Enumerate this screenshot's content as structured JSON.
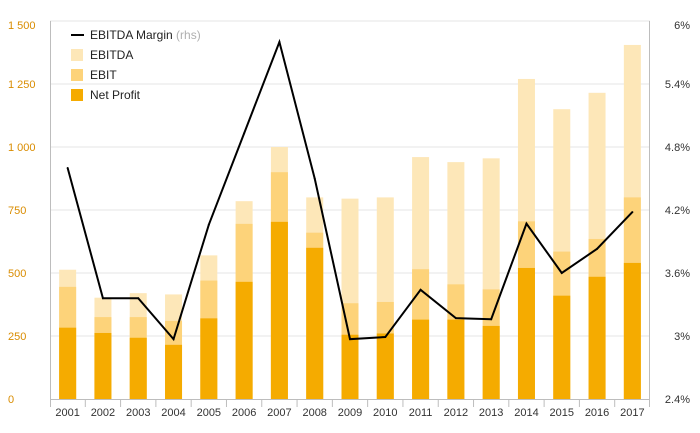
{
  "chart_data": {
    "type": "bar",
    "stacking": "overlay",
    "categories": [
      "2001",
      "2002",
      "2003",
      "2004",
      "2005",
      "2006",
      "2007",
      "2008",
      "2009",
      "2010",
      "2011",
      "2012",
      "2013",
      "2014",
      "2015",
      "2016",
      "2017"
    ],
    "series": [
      {
        "name": "EBITDA",
        "kind": "bar",
        "axis": "left",
        "color": "#fde7b8",
        "values": [
          513,
          402,
          420,
          415,
          570,
          785,
          1000,
          800,
          795,
          800,
          960,
          940,
          955,
          1270,
          1150,
          1215,
          1405
        ]
      },
      {
        "name": "EBIT",
        "kind": "bar",
        "axis": "left",
        "color": "#fdd37a",
        "values": [
          445,
          325,
          325,
          310,
          470,
          695,
          900,
          660,
          380,
          385,
          515,
          455,
          435,
          705,
          585,
          635,
          800
        ]
      },
      {
        "name": "Net Profit",
        "kind": "bar",
        "axis": "left",
        "color": "#f5ab00",
        "values": [
          283,
          262,
          243,
          215,
          320,
          465,
          703,
          600,
          255,
          260,
          315,
          315,
          290,
          520,
          410,
          485,
          540
        ]
      },
      {
        "name": "EBITDA Margin",
        "kind": "line",
        "axis": "right",
        "color": "#000000",
        "values": [
          4.6,
          3.36,
          3.36,
          2.97,
          4.06,
          4.93,
          5.8,
          4.5,
          2.97,
          2.99,
          3.44,
          3.17,
          3.16,
          4.07,
          3.6,
          3.83,
          4.18
        ]
      }
    ],
    "y_left": {
      "ylim": [
        0,
        1500
      ],
      "ticks": [
        0,
        250,
        500,
        750,
        1000,
        1250,
        1500
      ],
      "tick_labels": [
        "0",
        "250",
        "500",
        "750",
        "1 000",
        "1 250",
        "1 500"
      ]
    },
    "y_right": {
      "ylim": [
        2.4,
        6.0
      ],
      "ticks": [
        2.4,
        3.0,
        3.6,
        4.2,
        4.8,
        5.4,
        6.0
      ],
      "tick_labels": [
        "2.4%",
        "3%",
        "3.6%",
        "4.2%",
        "4.8%",
        "5.4%",
        "6%"
      ]
    },
    "legend": {
      "position": "top-left",
      "items": [
        {
          "label": "EBITDA Margin",
          "suffix": " (rhs)",
          "marker": "line",
          "color": "#000000"
        },
        {
          "label": "EBITDA",
          "suffix": "",
          "marker": "square",
          "color": "#fde7b8"
        },
        {
          "label": "EBIT",
          "suffix": "",
          "marker": "square",
          "color": "#fdd37a"
        },
        {
          "label": "Net Profit",
          "suffix": "",
          "marker": "square",
          "color": "#f5ab00"
        }
      ]
    },
    "title": "",
    "xlabel": "",
    "ylabel": "",
    "grid": "horizontal"
  }
}
